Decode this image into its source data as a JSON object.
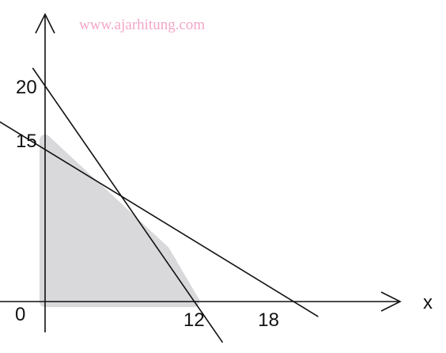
{
  "watermark": "www.ajarhitung.com",
  "axes": {
    "x_label": "x",
    "y_label": "",
    "origin_label": "0"
  },
  "chart_data": {
    "type": "line",
    "title": "",
    "xlabel": "x",
    "ylabel": "",
    "xlim": [
      -4.5,
      23.2
    ],
    "ylim": [
      -4.4,
      27.2
    ],
    "x_ticks": [
      {
        "value": 12,
        "label": "12"
      },
      {
        "value": 18,
        "label": "18"
      }
    ],
    "y_ticks": [
      {
        "value": 20,
        "label": "20"
      },
      {
        "value": 15,
        "label": "15"
      }
    ],
    "series": [
      {
        "points": [
          [
            -1,
            21.7
          ],
          [
            14.3,
            -3.8
          ]
        ],
        "color": "#111111"
      },
      {
        "points": [
          [
            -4.5,
            17.3
          ],
          [
            22,
            -1.4
          ]
        ],
        "color": "#111111"
      }
    ],
    "shaded_region": {
      "vertices": [
        [
          0,
          0
        ],
        [
          12,
          0
        ],
        [
          9.6,
          4.7
        ],
        [
          0,
          15
        ]
      ],
      "color": "#d9d8da"
    }
  }
}
